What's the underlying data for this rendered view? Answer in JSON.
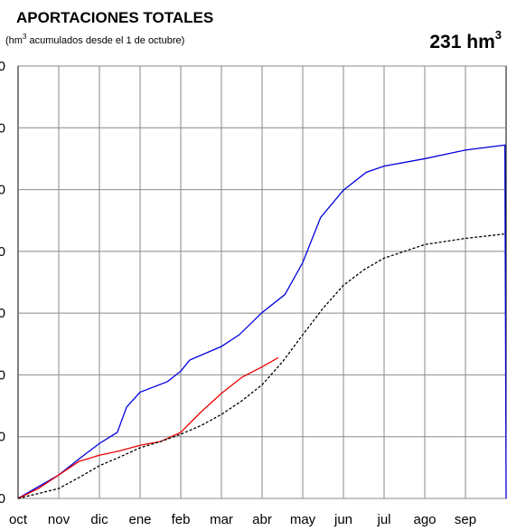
{
  "chart_data": {
    "type": "line",
    "title": "APORTACIONES TOTALES",
    "subtitle": {
      "before": "(hm",
      "sup": "3",
      "after": " acumulados desde el 1 de octubre)"
    },
    "total": {
      "value": "231",
      "unit": "hm",
      "sup": "3"
    },
    "categories": [
      "oct",
      "nov",
      "dic",
      "ene",
      "feb",
      "mar",
      "abr",
      "may",
      "jun",
      "jul",
      "ago",
      "sep"
    ],
    "xlim": [
      0,
      12
    ],
    "ylim": [
      0,
      7
    ],
    "yticks": [
      {
        "value": 0,
        "label": "0"
      },
      {
        "value": 1,
        "label": "0"
      },
      {
        "value": 2,
        "label": "0"
      },
      {
        "value": 3,
        "label": "0"
      },
      {
        "value": 4,
        "label": "0"
      },
      {
        "value": 5,
        "label": "0"
      },
      {
        "value": 6,
        "label": "0"
      },
      {
        "value": 7,
        "label": "0"
      }
    ],
    "grid": true,
    "series": [
      {
        "color": "#0000dd",
        "dash": false,
        "x": [
          0,
          1,
          1.56,
          2,
          2.44,
          2.67,
          3,
          3.67,
          4,
          4.22,
          5,
          5.44,
          6,
          6.56,
          7,
          7.44,
          8,
          8.56,
          9,
          10,
          11,
          11.97,
          12
        ],
        "values": [
          0,
          0.38,
          0.67,
          0.89,
          1.07,
          1.48,
          1.72,
          1.89,
          2.06,
          2.24,
          2.46,
          2.65,
          3.01,
          3.3,
          3.82,
          4.55,
          4.99,
          5.28,
          5.38,
          5.5,
          5.64,
          5.72,
          0
        ]
      },
      {
        "color": "#ee0000",
        "dash": false,
        "x": [
          0,
          0.5,
          1,
          1.5,
          2,
          2.5,
          3,
          3.5,
          4,
          4.5,
          5,
          5.5,
          6,
          6.4
        ],
        "values": [
          0,
          0.16,
          0.38,
          0.6,
          0.7,
          0.77,
          0.86,
          0.92,
          1.07,
          1.4,
          1.7,
          1.96,
          2.13,
          2.28
        ]
      },
      {
        "color": "#000000",
        "dash": true,
        "x": [
          0,
          1,
          1.5,
          2,
          2.5,
          3,
          3.5,
          4,
          4.5,
          5,
          5.5,
          6,
          6.5,
          7,
          7.5,
          8,
          8.5,
          9,
          10,
          11,
          11.95
        ],
        "values": [
          0,
          0.16,
          0.34,
          0.53,
          0.67,
          0.82,
          0.92,
          1.04,
          1.18,
          1.36,
          1.58,
          1.84,
          2.21,
          2.65,
          3.08,
          3.45,
          3.7,
          3.89,
          4.11,
          4.21,
          4.28
        ]
      }
    ]
  }
}
